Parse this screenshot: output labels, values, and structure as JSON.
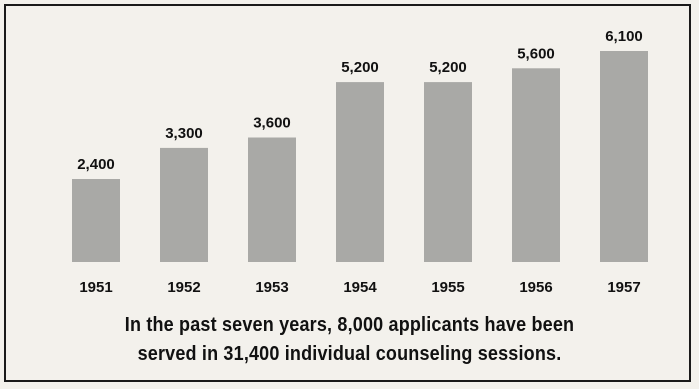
{
  "chart_data": {
    "type": "bar",
    "categories": [
      "1951",
      "1952",
      "1953",
      "1954",
      "1955",
      "1956",
      "1957"
    ],
    "values": [
      2400,
      3300,
      3600,
      5200,
      5200,
      5600,
      6100
    ],
    "value_labels": [
      "2,400",
      "3,300",
      "3,600",
      "5,200",
      "5,200",
      "5,600",
      "6,100"
    ],
    "ylim": [
      0,
      6100
    ],
    "grid": false,
    "legend": "none",
    "bar_color": "#a9a9a6",
    "label_color": "#111111"
  },
  "caption": {
    "line1": "In the past seven years, 8,000 applicants have been",
    "line2": "served in 31,400 individual counseling sessions."
  },
  "colors": {
    "background": "#f3f1ec",
    "frame": "#1a1a1a"
  }
}
